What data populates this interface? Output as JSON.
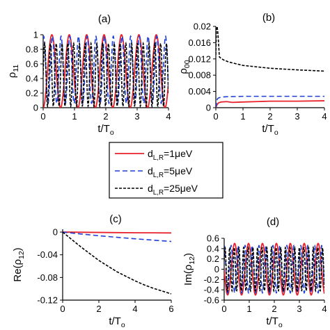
{
  "legend": [
    {
      "label": "d_{L,R}=1μeV",
      "color": "#e8212b",
      "dash": "solid"
    },
    {
      "label": "d_{L,R}=5μeV",
      "color": "#1f3fd6",
      "dash": "dashed"
    },
    {
      "label": "d_{L,R}=25μeV",
      "color": "#000000",
      "dash": "dotted-dash"
    }
  ],
  "chart_data": [
    {
      "type": "line",
      "panel_label": "(a)",
      "xlabel": "t/T_o",
      "ylabel": "ρ_11",
      "xlim": [
        0,
        4
      ],
      "ylim": [
        0,
        1
      ],
      "xticks": [
        0,
        1,
        2,
        3,
        4
      ],
      "yticks": [
        0,
        0.2,
        0.4,
        0.6,
        0.8,
        1
      ],
      "ytick_labels": [
        "0",
        "0.2",
        "0.4",
        "0.6",
        "0.8",
        "1"
      ],
      "series": [
        {
          "name": "d_{L,R}=1μeV",
          "function": "0.5+0.5*sin(2*pi*1.8*x - 1.57)",
          "mean": 0.5,
          "amplitude": 0.5,
          "frequency_per_To": 1.8
        },
        {
          "name": "d_{L,R}=5μeV",
          "function": "0.52+0.46*sin(2*pi*3.6*x + 1.2)",
          "mean": 0.52,
          "amplitude": 0.46,
          "frequency_per_To": 3.6
        },
        {
          "name": "d_{L,R}=25μeV",
          "function": "0.45+0.43*sin(2*pi*5.4*x)",
          "mean": 0.45,
          "amplitude": 0.43,
          "frequency_per_To": 5.4
        }
      ]
    },
    {
      "type": "line",
      "panel_label": "(b)",
      "xlabel": "t/T_o",
      "ylabel": "ρ_00",
      "xlim": [
        0,
        4
      ],
      "ylim": [
        0,
        0.02
      ],
      "xticks": [
        0,
        1,
        2,
        3,
        4
      ],
      "yticks": [
        0,
        0.004,
        0.008,
        0.012,
        0.016,
        0.02
      ],
      "ytick_labels": [
        "0",
        "0.004",
        "0.008",
        "0.012",
        "0.016",
        "0.02"
      ],
      "series": [
        {
          "name": "d_{L,R}=1μeV",
          "x": [
            0,
            0.05,
            0.1,
            0.2,
            0.4,
            0.6,
            1,
            1.5,
            2,
            3,
            4
          ],
          "y": [
            0,
            0.0008,
            0.0012,
            0.0014,
            0.0015,
            0.0013,
            0.0014,
            0.0015,
            0.0016,
            0.0016,
            0.0017
          ]
        },
        {
          "name": "d_{L,R}=5μeV",
          "x": [
            0,
            0.03,
            0.06,
            0.1,
            0.2,
            0.4,
            1,
            2,
            3,
            4
          ],
          "y": [
            0,
            0.0015,
            0.0022,
            0.0024,
            0.0026,
            0.0027,
            0.0028,
            0.0028,
            0.0028,
            0.0028
          ]
        },
        {
          "name": "d_{L,R}=25μeV",
          "x": [
            0,
            0.02,
            0.05,
            0.08,
            0.1,
            0.13,
            0.2,
            0.3,
            0.5,
            1,
            2,
            3,
            4
          ],
          "y": [
            0.013,
            0.019,
            0.02,
            0.018,
            0.016,
            0.0125,
            0.0121,
            0.0117,
            0.0112,
            0.0104,
            0.0097,
            0.0093,
            0.009
          ]
        }
      ]
    },
    {
      "type": "line",
      "panel_label": "(c)",
      "xlabel": "t/T_o",
      "ylabel": "Re(ρ_12)",
      "xlim": [
        0,
        6
      ],
      "ylim": [
        -0.12,
        0.005
      ],
      "xticks": [
        0,
        2,
        4,
        6
      ],
      "yticks": [
        0,
        -0.04,
        -0.08,
        -0.12
      ],
      "ytick_labels": [
        "0",
        "-0.04",
        "-0.08",
        "-0.12"
      ],
      "series": [
        {
          "name": "d_{L,R}=1μeV",
          "x": [
            0,
            1,
            2,
            3,
            4,
            5,
            6
          ],
          "y": [
            0,
            -0.0003,
            -0.0006,
            -0.0009,
            -0.0011,
            -0.0013,
            -0.0015
          ]
        },
        {
          "name": "d_{L,R}=5μeV",
          "x": [
            0,
            1,
            2,
            3,
            4,
            5,
            6
          ],
          "y": [
            0,
            -0.0033,
            -0.0064,
            -0.0092,
            -0.0118,
            -0.0142,
            -0.0165
          ]
        },
        {
          "name": "d_{L,R}=25μeV",
          "x": [
            0,
            0.5,
            1,
            1.5,
            2,
            2.5,
            3,
            3.5,
            4,
            4.5,
            5,
            5.5,
            6
          ],
          "y": [
            0,
            -0.013,
            -0.026,
            -0.038,
            -0.05,
            -0.06,
            -0.07,
            -0.078,
            -0.086,
            -0.093,
            -0.099,
            -0.104,
            -0.109
          ]
        }
      ]
    },
    {
      "type": "line",
      "panel_label": "(d)",
      "xlabel": "t/T_o",
      "ylabel": "Im(ρ_12)",
      "xlim": [
        0,
        4
      ],
      "ylim": [
        -0.6,
        0.6
      ],
      "xticks": [
        0,
        1,
        2,
        3,
        4
      ],
      "yticks": [
        0.6,
        0.4,
        0.2,
        0,
        -0.2,
        -0.4,
        -0.6
      ],
      "ytick_labels": [
        "0.6",
        "0.4",
        "0.2",
        "0",
        "-0.2",
        "-0.4",
        "-0.6"
      ],
      "series": [
        {
          "name": "d_{L,R}=1μeV",
          "function": "-0.5*sin(2*pi*1.8*x)",
          "mean": 0,
          "amplitude": 0.5,
          "frequency_per_To": 1.8
        },
        {
          "name": "d_{L,R}=5μeV",
          "function": "0.46*sin(2*pi*3.6*x + 1.57)",
          "mean": 0,
          "amplitude": 0.46,
          "frequency_per_To": 3.6
        },
        {
          "name": "d_{L,R}=25μeV",
          "function": "0.42*sin(2*pi*5.4*x + 0.4)",
          "mean": 0,
          "amplitude": 0.42,
          "frequency_per_To": 5.4
        }
      ]
    }
  ]
}
